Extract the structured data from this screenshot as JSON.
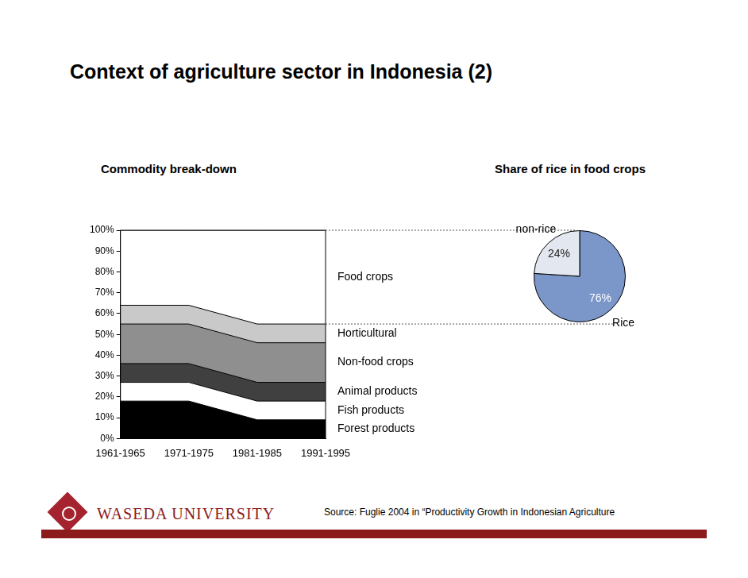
{
  "page": {
    "title": "Context of agriculture sector in Indonesia (2)",
    "source": "Source: Fuglie 2004 in “Productivity Growth in Indonesian Agriculture",
    "logo_text": "WASEDA UNIVERSITY"
  },
  "chart_data": [
    {
      "type": "area",
      "title": "Commodity break-down",
      "categories": [
        "1961-1965",
        "1971-1975",
        "1981-1985",
        "1991-1995"
      ],
      "stacked": true,
      "series": [
        {
          "name": "Forest products",
          "color": "#000000",
          "values": [
            18,
            18,
            9,
            9
          ]
        },
        {
          "name": "Fish products",
          "color": "#ffffff",
          "values": [
            9,
            9,
            9,
            9
          ]
        },
        {
          "name": "Animal products",
          "color": "#404040",
          "values": [
            9,
            9,
            9,
            9
          ]
        },
        {
          "name": "Non-food crops",
          "color": "#8f8f8f",
          "values": [
            19,
            19,
            19,
            19
          ]
        },
        {
          "name": "Horticultural",
          "color": "#c9c9c9",
          "values": [
            9,
            9,
            9,
            9
          ]
        },
        {
          "name": "Food crops",
          "color": "#ffffff",
          "values": [
            36,
            36,
            45,
            45
          ]
        }
      ],
      "ylim": [
        0,
        100
      ],
      "yticks": [
        {
          "value": 0,
          "label": "0%"
        },
        {
          "value": 10,
          "label": "10%"
        },
        {
          "value": 20,
          "label": "20%"
        },
        {
          "value": 30,
          "label": "30%"
        },
        {
          "value": 40,
          "label": "40%"
        },
        {
          "value": 50,
          "label": "50%"
        },
        {
          "value": 60,
          "label": "60%"
        },
        {
          "value": 70,
          "label": "70%"
        },
        {
          "value": 80,
          "label": "80%"
        },
        {
          "value": 90,
          "label": "90%"
        },
        {
          "value": 100,
          "label": "100%"
        }
      ],
      "grid": false
    },
    {
      "type": "pie",
      "title": "Share of rice in food crops",
      "categories": [
        "Rice",
        "non-rice"
      ],
      "values": [
        76,
        24
      ],
      "value_labels": [
        "76%",
        "24%"
      ],
      "colors": [
        "#7b96c8",
        "#e3e7ef"
      ],
      "data_labels": true
    }
  ]
}
